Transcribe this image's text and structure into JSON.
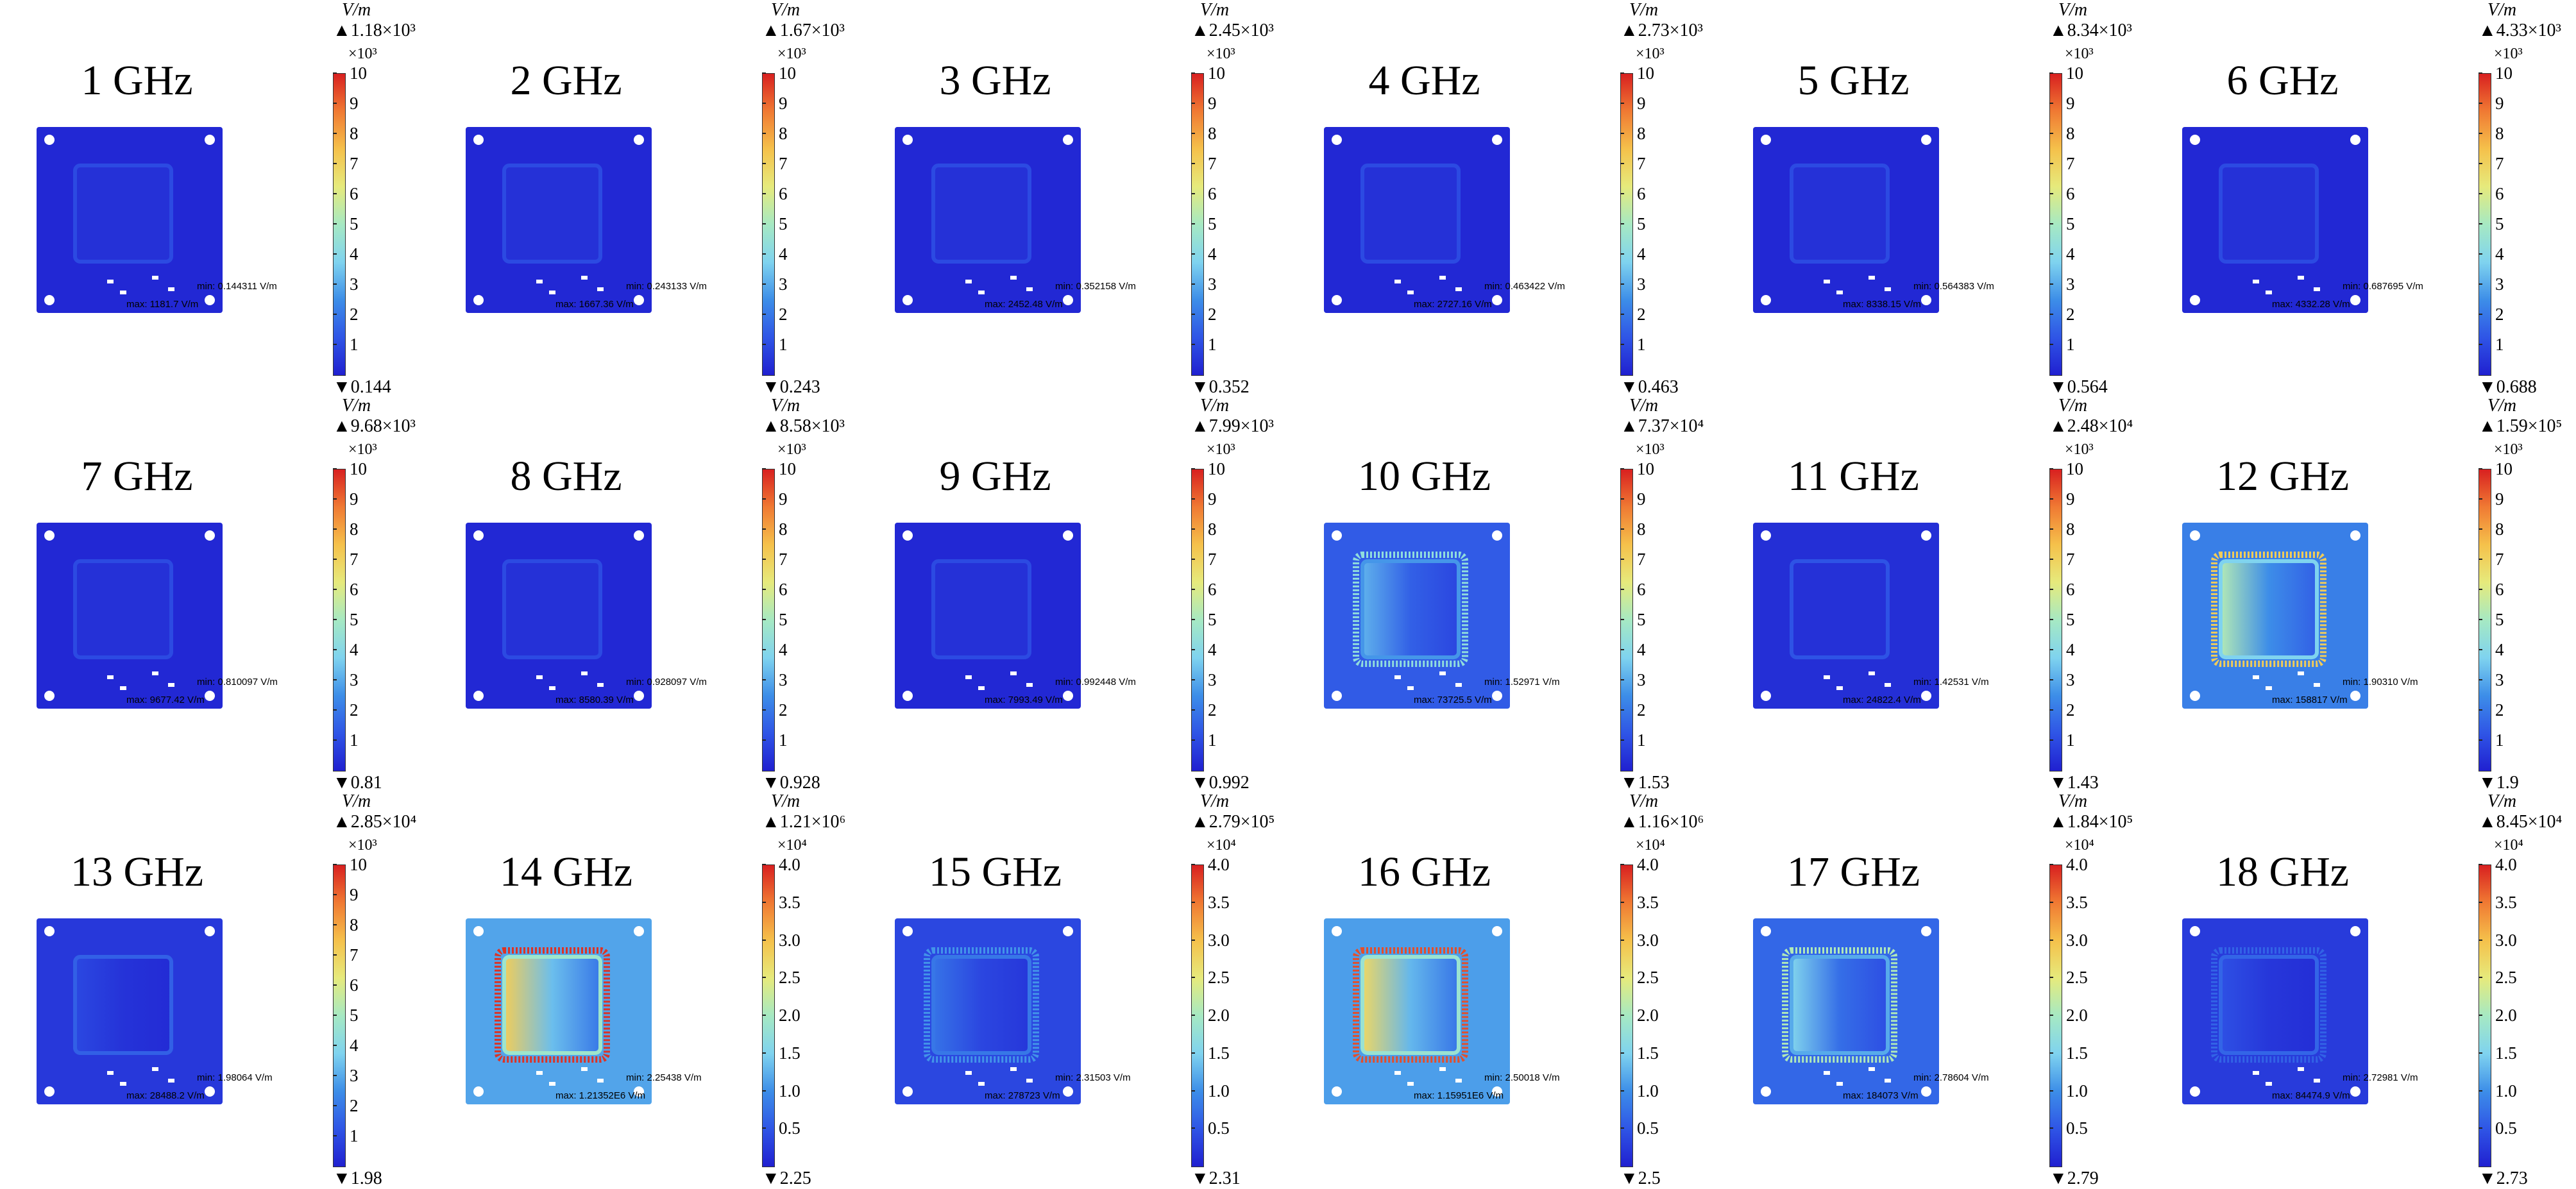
{
  "chart_data": [
    {
      "type": "heatmap",
      "title": "1 GHz",
      "colorbar": {
        "unit": "V/m",
        "max_label": "▲1.18×10³",
        "min_label": "▼0.144",
        "exponent": "×10³",
        "ticks": [
          "10",
          "9",
          "8",
          "7",
          "6",
          "5",
          "4",
          "3",
          "2",
          "1"
        ],
        "range": [
          0,
          10
        ]
      },
      "annotations": {
        "min": "min: 0.144311 V/m",
        "max": "max: 1181.7 V/m"
      },
      "level": 0.0
    },
    {
      "type": "heatmap",
      "title": "2 GHz",
      "colorbar": {
        "unit": "V/m",
        "max_label": "▲1.67×10³",
        "min_label": "▼0.243",
        "exponent": "×10³",
        "ticks": [
          "10",
          "9",
          "8",
          "7",
          "6",
          "5",
          "4",
          "3",
          "2",
          "1"
        ],
        "range": [
          0,
          10
        ]
      },
      "annotations": {
        "min": "min: 0.243133 V/m",
        "max": "max: 1667.36 V/m"
      },
      "level": 0.0
    },
    {
      "type": "heatmap",
      "title": "3 GHz",
      "colorbar": {
        "unit": "V/m",
        "max_label": "▲2.45×10³",
        "min_label": "▼0.352",
        "exponent": "×10³",
        "ticks": [
          "10",
          "9",
          "8",
          "7",
          "6",
          "5",
          "4",
          "3",
          "2",
          "1"
        ],
        "range": [
          0,
          10
        ]
      },
      "annotations": {
        "min": "min: 0.352158 V/m",
        "max": "max: 2452.48 V/m"
      },
      "level": 0.0
    },
    {
      "type": "heatmap",
      "title": "4 GHz",
      "colorbar": {
        "unit": "V/m",
        "max_label": "▲2.73×10³",
        "min_label": "▼0.463",
        "exponent": "×10³",
        "ticks": [
          "10",
          "9",
          "8",
          "7",
          "6",
          "5",
          "4",
          "3",
          "2",
          "1"
        ],
        "range": [
          0,
          10
        ]
      },
      "annotations": {
        "min": "min: 0.463422 V/m",
        "max": "max: 2727.16 V/m"
      },
      "level": 0.0
    },
    {
      "type": "heatmap",
      "title": "5 GHz",
      "colorbar": {
        "unit": "V/m",
        "max_label": "▲8.34×10³",
        "min_label": "▼0.564",
        "exponent": "×10³",
        "ticks": [
          "10",
          "9",
          "8",
          "7",
          "6",
          "5",
          "4",
          "3",
          "2",
          "1"
        ],
        "range": [
          0,
          10
        ]
      },
      "annotations": {
        "min": "min: 0.564383 V/m",
        "max": "max: 8338.15 V/m"
      },
      "level": 0.0
    },
    {
      "type": "heatmap",
      "title": "6 GHz",
      "colorbar": {
        "unit": "V/m",
        "max_label": "▲4.33×10³",
        "min_label": "▼0.688",
        "exponent": "×10³",
        "ticks": [
          "10",
          "9",
          "8",
          "7",
          "6",
          "5",
          "4",
          "3",
          "2",
          "1"
        ],
        "range": [
          0,
          10
        ]
      },
      "annotations": {
        "min": "min: 0.687695 V/m",
        "max": "max: 4332.28 V/m"
      },
      "level": 0.0
    },
    {
      "type": "heatmap",
      "title": "7 GHz",
      "colorbar": {
        "unit": "V/m",
        "max_label": "▲9.68×10³",
        "min_label": "▼0.81",
        "exponent": "×10³",
        "ticks": [
          "10",
          "9",
          "8",
          "7",
          "6",
          "5",
          "4",
          "3",
          "2",
          "1"
        ],
        "range": [
          0,
          10
        ]
      },
      "annotations": {
        "min": "min: 0.810097 V/m",
        "max": "max: 9677.42 V/m"
      },
      "level": 0.0
    },
    {
      "type": "heatmap",
      "title": "8 GHz",
      "colorbar": {
        "unit": "V/m",
        "max_label": "▲8.58×10³",
        "min_label": "▼0.928",
        "exponent": "×10³",
        "ticks": [
          "10",
          "9",
          "8",
          "7",
          "6",
          "5",
          "4",
          "3",
          "2",
          "1"
        ],
        "range": [
          0,
          10
        ]
      },
      "annotations": {
        "min": "min: 0.928097 V/m",
        "max": "max: 8580.39 V/m"
      },
      "level": 0.0
    },
    {
      "type": "heatmap",
      "title": "9 GHz",
      "colorbar": {
        "unit": "V/m",
        "max_label": "▲7.99×10³",
        "min_label": "▼0.992",
        "exponent": "×10³",
        "ticks": [
          "10",
          "9",
          "8",
          "7",
          "6",
          "5",
          "4",
          "3",
          "2",
          "1"
        ],
        "range": [
          0,
          10
        ]
      },
      "annotations": {
        "min": "min: 0.992448 V/m",
        "max": "max: 7993.49 V/m"
      },
      "level": 0.0
    },
    {
      "type": "heatmap",
      "title": "10 GHz",
      "colorbar": {
        "unit": "V/m",
        "max_label": "▲7.37×10⁴",
        "min_label": "▼1.53",
        "exponent": "×10³",
        "ticks": [
          "10",
          "9",
          "8",
          "7",
          "6",
          "5",
          "4",
          "3",
          "2",
          "1"
        ],
        "range": [
          0,
          10
        ]
      },
      "annotations": {
        "min": "min: 1.52971 V/m",
        "max": "max: 73725.5 V/m"
      },
      "level": 0.33
    },
    {
      "type": "heatmap",
      "title": "11 GHz",
      "colorbar": {
        "unit": "V/m",
        "max_label": "▲2.48×10⁴",
        "min_label": "▼1.43",
        "exponent": "×10³",
        "ticks": [
          "10",
          "9",
          "8",
          "7",
          "6",
          "5",
          "4",
          "3",
          "2",
          "1"
        ],
        "range": [
          0,
          10
        ]
      },
      "annotations": {
        "min": "min: 1.42531 V/m",
        "max": "max: 24822.4 V/m"
      },
      "level": 0.04
    },
    {
      "type": "heatmap",
      "title": "12 GHz",
      "colorbar": {
        "unit": "V/m",
        "max_label": "▲1.59×10⁵",
        "min_label": "▼1.9",
        "exponent": "×10³",
        "ticks": [
          "10",
          "9",
          "8",
          "7",
          "6",
          "5",
          "4",
          "3",
          "2",
          "1"
        ],
        "range": [
          0,
          10
        ]
      },
      "annotations": {
        "min": "min: 1.90310 V/m",
        "max": "max: 158817 V/m"
      },
      "level": 0.55
    },
    {
      "type": "heatmap",
      "title": "13 GHz",
      "colorbar": {
        "unit": "V/m",
        "max_label": "▲2.85×10⁴",
        "min_label": "▼1.98",
        "exponent": "×10³",
        "ticks": [
          "10",
          "9",
          "8",
          "7",
          "6",
          "5",
          "4",
          "3",
          "2",
          "1"
        ],
        "range": [
          0,
          10
        ]
      },
      "annotations": {
        "min": "min: 1.98064 V/m",
        "max": "max: 28488.2 V/m"
      },
      "level": 0.1
    },
    {
      "type": "heatmap",
      "title": "14 GHz",
      "colorbar": {
        "unit": "V/m",
        "max_label": "▲1.21×10⁶",
        "min_label": "▼2.25",
        "exponent": "×10⁴",
        "ticks": [
          "4.0",
          "3.5",
          "3.0",
          "2.5",
          "2.0",
          "1.5",
          "1.0",
          "0.5"
        ],
        "range": [
          0,
          4
        ]
      },
      "annotations": {
        "min": "min: 2.25438 V/m",
        "max": "max: 1.21352E6 V/m"
      },
      "level": 0.75
    },
    {
      "type": "heatmap",
      "title": "15 GHz",
      "colorbar": {
        "unit": "V/m",
        "max_label": "▲2.79×10⁵",
        "min_label": "▼2.31",
        "exponent": "×10⁴",
        "ticks": [
          "4.0",
          "3.5",
          "3.0",
          "2.5",
          "2.0",
          "1.5",
          "1.0",
          "0.5"
        ],
        "range": [
          0,
          4
        ]
      },
      "annotations": {
        "min": "min: 2.31503 V/m",
        "max": "max: 278723 V/m"
      },
      "level": 0.2
    },
    {
      "type": "heatmap",
      "title": "16 GHz",
      "colorbar": {
        "unit": "V/m",
        "max_label": "▲1.16×10⁶",
        "min_label": "▼2.5",
        "exponent": "×10⁴",
        "ticks": [
          "4.0",
          "3.5",
          "3.0",
          "2.5",
          "2.0",
          "1.5",
          "1.0",
          "0.5"
        ],
        "range": [
          0,
          4
        ]
      },
      "annotations": {
        "min": "min: 2.50018 V/m",
        "max": "max: 1.15951E6 V/m"
      },
      "level": 0.72
    },
    {
      "type": "heatmap",
      "title": "17 GHz",
      "colorbar": {
        "unit": "V/m",
        "max_label": "▲1.84×10⁵",
        "min_label": "▼2.79",
        "exponent": "×10⁴",
        "ticks": [
          "4.0",
          "3.5",
          "3.0",
          "2.5",
          "2.0",
          "1.5",
          "1.0",
          "0.5"
        ],
        "range": [
          0,
          4
        ]
      },
      "annotations": {
        "min": "min: 2.78604 V/m",
        "max": "max: 184073 V/m"
      },
      "level": 0.4
    },
    {
      "type": "heatmap",
      "title": "18 GHz",
      "colorbar": {
        "unit": "V/m",
        "max_label": "▲8.45×10⁴",
        "min_label": "▼2.73",
        "exponent": "×10⁴",
        "ticks": [
          "4.0",
          "3.5",
          "3.0",
          "2.5",
          "2.0",
          "1.5",
          "1.0",
          "0.5"
        ],
        "range": [
          0,
          4
        ]
      },
      "annotations": {
        "min": "min: 2.72981 V/m",
        "max": "max: 84474.9 V/m"
      },
      "level": 0.12
    }
  ],
  "colors": {
    "colormap": [
      "#2020d0",
      "#2f55e6",
      "#3d8ee8",
      "#7fd3ef",
      "#a6e9c3",
      "#e6ea7c",
      "#f5c14b",
      "#f07a33",
      "#d82020"
    ],
    "board_base": "#1f3ee6",
    "hole": "#ffffff"
  }
}
